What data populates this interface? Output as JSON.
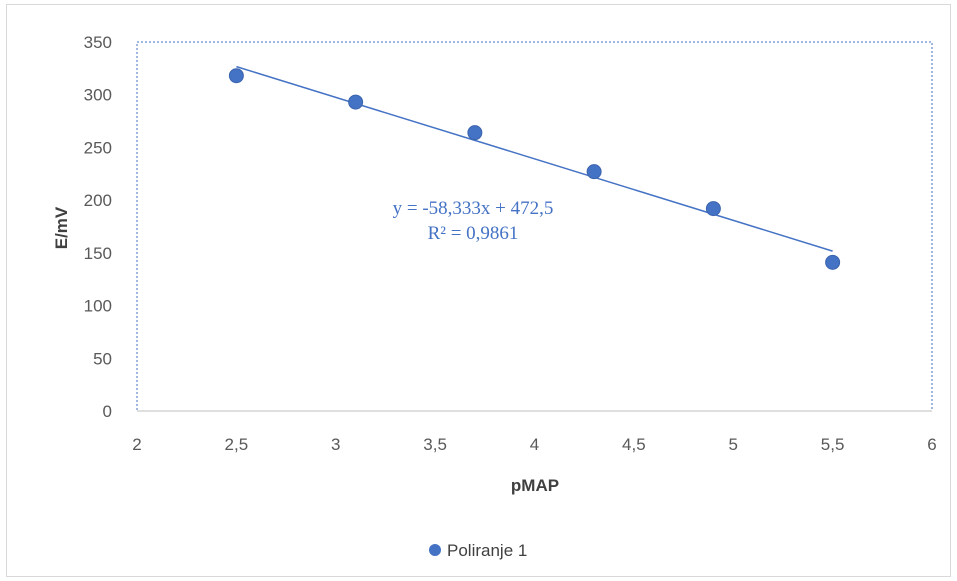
{
  "chart_data": {
    "type": "scatter",
    "title": "",
    "xlabel": "pMAP",
    "ylabel": "E/mV",
    "xlim": [
      2,
      6
    ],
    "ylim": [
      0,
      350
    ],
    "x_ticks": [
      "2",
      "2,5",
      "3",
      "3,5",
      "4",
      "4,5",
      "5",
      "5,5",
      "6"
    ],
    "y_ticks": [
      "0",
      "50",
      "100",
      "150",
      "200",
      "250",
      "300",
      "350"
    ],
    "series": [
      {
        "name": "Poliranje 1",
        "color": "#4472c4",
        "x": [
          2.5,
          3.1,
          3.7,
          4.3,
          4.9,
          5.5
        ],
        "y": [
          318,
          293,
          264,
          227,
          192,
          141
        ]
      }
    ],
    "trendline": {
      "slope": -58.333,
      "intercept": 472.5,
      "x_range": [
        2.5,
        5.5
      ],
      "color": "#4472c4",
      "equation": "y = -58,333x + 472,5",
      "r_squared": "R² = 0,9861"
    },
    "legend": {
      "position": "bottom",
      "label": "Poliranje 1"
    },
    "grid": false
  }
}
